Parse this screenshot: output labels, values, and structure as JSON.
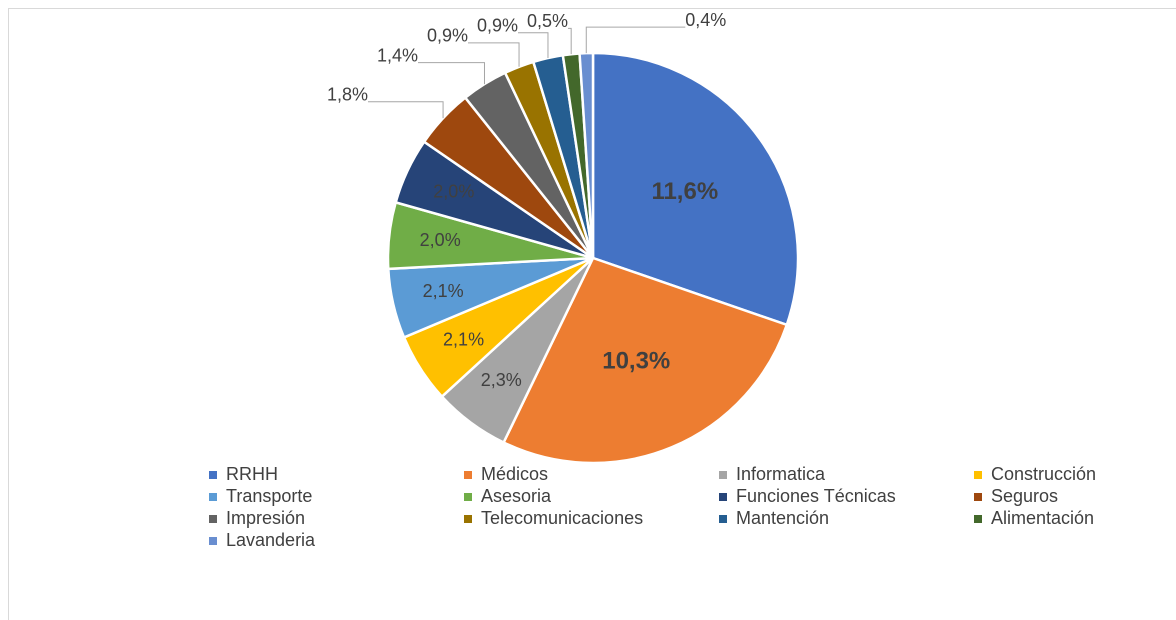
{
  "chart_data": {
    "type": "pie",
    "categories": [
      "RRHH",
      "Médicos",
      "Informatica",
      "Construcción",
      "Transporte",
      "Asesoria",
      "Funciones Técnicas",
      "Seguros",
      "Impresión",
      "Telecomunicaciones",
      "Mantención",
      "Alimentación",
      "Lavanderia"
    ],
    "values": [
      11.6,
      10.3,
      2.3,
      2.1,
      2.1,
      2.0,
      2.0,
      1.8,
      1.4,
      0.9,
      0.9,
      0.5,
      0.4
    ],
    "value_labels": [
      "11,6%",
      "10,3%",
      "2,3%",
      "2,1%",
      "2,1%",
      "2,0%",
      "2,0%",
      "1,8%",
      "1,4%",
      "0,9%",
      "0,9%",
      "0,5%",
      "0,4%"
    ],
    "colors": [
      "#4472c4",
      "#ed7d31",
      "#a5a5a5",
      "#ffc000",
      "#5b9bd5",
      "#70ad47",
      "#264478",
      "#9e480e",
      "#636363",
      "#997300",
      "#255e91",
      "#43682b",
      "#698ed0"
    ],
    "legend": "bottom"
  }
}
